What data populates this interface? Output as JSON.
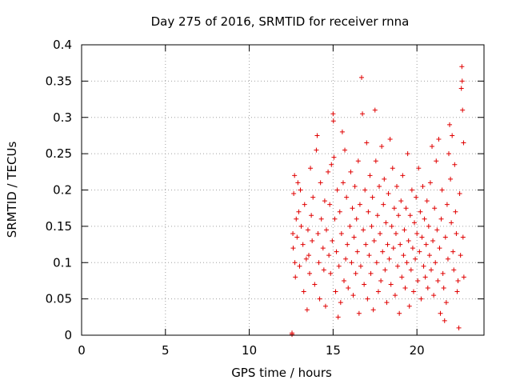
{
  "chart_data": {
    "type": "scatter",
    "title": "Day 275 of 2016, SRMTID for receiver rnna",
    "xlabel": "GPS time / hours",
    "ylabel": "SRMTID / TECUs",
    "xlim": [
      0,
      24
    ],
    "ylim": [
      0,
      0.4
    ],
    "xticks": [
      0,
      5,
      10,
      15,
      20
    ],
    "xtick_labels": [
      "0",
      "5",
      "10",
      "15",
      "20"
    ],
    "yticks": [
      0,
      0.05,
      0.1,
      0.15,
      0.2,
      0.25,
      0.3,
      0.35,
      0.4
    ],
    "ytick_labels": [
      "0",
      "0.05",
      "0.1",
      "0.15",
      "0.2",
      "0.25",
      "0.3",
      "0.35",
      "0.4"
    ],
    "grid": true,
    "marker": "+",
    "color": "#e00000",
    "x_range_of_data": [
      12.5,
      22.8
    ],
    "points": [
      [
        12.55,
        0.001
      ],
      [
        12.55,
        0.003
      ],
      [
        12.6,
        0.14
      ],
      [
        12.62,
        0.12
      ],
      [
        12.65,
        0.195
      ],
      [
        12.7,
        0.22
      ],
      [
        12.72,
        0.1
      ],
      [
        12.75,
        0.08
      ],
      [
        12.8,
        0.16
      ],
      [
        12.85,
        0.135
      ],
      [
        12.9,
        0.21
      ],
      [
        12.95,
        0.17
      ],
      [
        13.0,
        0.095
      ],
      [
        13.05,
        0.2
      ],
      [
        13.1,
        0.15
      ],
      [
        13.2,
        0.125
      ],
      [
        13.25,
        0.06
      ],
      [
        13.3,
        0.18
      ],
      [
        13.4,
        0.105
      ],
      [
        13.45,
        0.035
      ],
      [
        13.5,
        0.145
      ],
      [
        13.55,
        0.11
      ],
      [
        13.6,
        0.085
      ],
      [
        13.65,
        0.23
      ],
      [
        13.7,
        0.165
      ],
      [
        13.75,
        0.13
      ],
      [
        13.8,
        0.19
      ],
      [
        13.9,
        0.07
      ],
      [
        14.0,
        0.255
      ],
      [
        14.05,
        0.275
      ],
      [
        14.1,
        0.14
      ],
      [
        14.15,
        0.1
      ],
      [
        14.2,
        0.05
      ],
      [
        14.25,
        0.21
      ],
      [
        14.3,
        0.16
      ],
      [
        14.4,
        0.12
      ],
      [
        14.45,
        0.09
      ],
      [
        14.5,
        0.185
      ],
      [
        14.55,
        0.04
      ],
      [
        14.6,
        0.145
      ],
      [
        14.7,
        0.225
      ],
      [
        14.75,
        0.11
      ],
      [
        14.8,
        0.18
      ],
      [
        14.85,
        0.085
      ],
      [
        14.9,
        0.235
      ],
      [
        14.95,
        0.13
      ],
      [
        15.0,
        0.305
      ],
      [
        15.02,
        0.295
      ],
      [
        15.05,
        0.245
      ],
      [
        15.1,
        0.16
      ],
      [
        15.15,
        0.06
      ],
      [
        15.2,
        0.115
      ],
      [
        15.25,
        0.2
      ],
      [
        15.3,
        0.025
      ],
      [
        15.35,
        0.095
      ],
      [
        15.4,
        0.17
      ],
      [
        15.45,
        0.045
      ],
      [
        15.5,
        0.14
      ],
      [
        15.55,
        0.28
      ],
      [
        15.6,
        0.21
      ],
      [
        15.65,
        0.075
      ],
      [
        15.7,
        0.255
      ],
      [
        15.75,
        0.105
      ],
      [
        15.8,
        0.19
      ],
      [
        15.85,
        0.125
      ],
      [
        15.9,
        0.065
      ],
      [
        16.0,
        0.15
      ],
      [
        16.05,
        0.225
      ],
      [
        16.1,
        0.1
      ],
      [
        16.15,
        0.175
      ],
      [
        16.2,
        0.055
      ],
      [
        16.25,
        0.135
      ],
      [
        16.3,
        0.205
      ],
      [
        16.35,
        0.085
      ],
      [
        16.4,
        0.16
      ],
      [
        16.45,
        0.115
      ],
      [
        16.5,
        0.24
      ],
      [
        16.55,
        0.03
      ],
      [
        16.6,
        0.18
      ],
      [
        16.65,
        0.095
      ],
      [
        16.7,
        0.355
      ],
      [
        16.75,
        0.305
      ],
      [
        16.8,
        0.145
      ],
      [
        16.85,
        0.07
      ],
      [
        16.9,
        0.2
      ],
      [
        16.95,
        0.125
      ],
      [
        17.0,
        0.265
      ],
      [
        17.05,
        0.05
      ],
      [
        17.1,
        0.17
      ],
      [
        17.15,
        0.11
      ],
      [
        17.2,
        0.22
      ],
      [
        17.25,
        0.085
      ],
      [
        17.3,
        0.15
      ],
      [
        17.35,
        0.19
      ],
      [
        17.4,
        0.035
      ],
      [
        17.45,
        0.13
      ],
      [
        17.5,
        0.31
      ],
      [
        17.55,
        0.24
      ],
      [
        17.6,
        0.1
      ],
      [
        17.65,
        0.165
      ],
      [
        17.7,
        0.06
      ],
      [
        17.75,
        0.205
      ],
      [
        17.8,
        0.14
      ],
      [
        17.85,
        0.075
      ],
      [
        17.9,
        0.26
      ],
      [
        17.95,
        0.115
      ],
      [
        18.0,
        0.18
      ],
      [
        18.05,
        0.215
      ],
      [
        18.1,
        0.09
      ],
      [
        18.15,
        0.155
      ],
      [
        18.2,
        0.045
      ],
      [
        18.25,
        0.125
      ],
      [
        18.3,
        0.195
      ],
      [
        18.35,
        0.105
      ],
      [
        18.4,
        0.27
      ],
      [
        18.45,
        0.07
      ],
      [
        18.5,
        0.15
      ],
      [
        18.55,
        0.23
      ],
      [
        18.6,
        0.12
      ],
      [
        18.65,
        0.175
      ],
      [
        18.7,
        0.055
      ],
      [
        18.75,
        0.14
      ],
      [
        18.8,
        0.205
      ],
      [
        18.85,
        0.095
      ],
      [
        18.9,
        0.165
      ],
      [
        18.95,
        0.03
      ],
      [
        19.0,
        0.125
      ],
      [
        19.05,
        0.185
      ],
      [
        19.1,
        0.08
      ],
      [
        19.15,
        0.22
      ],
      [
        19.2,
        0.11
      ],
      [
        19.25,
        0.145
      ],
      [
        19.3,
        0.065
      ],
      [
        19.35,
        0.175
      ],
      [
        19.4,
        0.1
      ],
      [
        19.45,
        0.25
      ],
      [
        19.5,
        0.13
      ],
      [
        19.55,
        0.04
      ],
      [
        19.6,
        0.165
      ],
      [
        19.65,
        0.09
      ],
      [
        19.7,
        0.2
      ],
      [
        19.75,
        0.12
      ],
      [
        19.8,
        0.06
      ],
      [
        19.85,
        0.155
      ],
      [
        19.9,
        0.105
      ],
      [
        19.95,
        0.19
      ],
      [
        20.0,
        0.14
      ],
      [
        20.05,
        0.075
      ],
      [
        20.1,
        0.23
      ],
      [
        20.15,
        0.115
      ],
      [
        20.2,
        0.17
      ],
      [
        20.25,
        0.05
      ],
      [
        20.3,
        0.135
      ],
      [
        20.35,
        0.205
      ],
      [
        20.4,
        0.095
      ],
      [
        20.45,
        0.16
      ],
      [
        20.5,
        0.08
      ],
      [
        20.55,
        0.125
      ],
      [
        20.6,
        0.185
      ],
      [
        20.65,
        0.065
      ],
      [
        20.7,
        0.15
      ],
      [
        20.75,
        0.11
      ],
      [
        20.8,
        0.21
      ],
      [
        20.85,
        0.09
      ],
      [
        20.9,
        0.26
      ],
      [
        20.95,
        0.13
      ],
      [
        21.0,
        0.055
      ],
      [
        21.05,
        0.175
      ],
      [
        21.1,
        0.1
      ],
      [
        21.15,
        0.24
      ],
      [
        21.2,
        0.145
      ],
      [
        21.25,
        0.075
      ],
      [
        21.3,
        0.27
      ],
      [
        21.35,
        0.12
      ],
      [
        21.4,
        0.03
      ],
      [
        21.45,
        0.16
      ],
      [
        21.5,
        0.2
      ],
      [
        21.55,
        0.085
      ],
      [
        21.6,
        0.065
      ],
      [
        21.65,
        0.02
      ],
      [
        21.7,
        0.135
      ],
      [
        21.75,
        0.045
      ],
      [
        21.8,
        0.18
      ],
      [
        21.85,
        0.105
      ],
      [
        21.9,
        0.25
      ],
      [
        21.95,
        0.29
      ],
      [
        22.0,
        0.215
      ],
      [
        22.05,
        0.155
      ],
      [
        22.1,
        0.275
      ],
      [
        22.15,
        0.115
      ],
      [
        22.2,
        0.09
      ],
      [
        22.25,
        0.235
      ],
      [
        22.3,
        0.17
      ],
      [
        22.35,
        0.14
      ],
      [
        22.4,
        0.06
      ],
      [
        22.45,
        0.075
      ],
      [
        22.5,
        0.01
      ],
      [
        22.55,
        0.195
      ],
      [
        22.6,
        0.11
      ],
      [
        22.65,
        0.34
      ],
      [
        22.68,
        0.37
      ],
      [
        22.7,
        0.35
      ],
      [
        22.72,
        0.31
      ],
      [
        22.75,
        0.135
      ],
      [
        22.8,
        0.08
      ],
      [
        22.78,
        0.265
      ]
    ]
  }
}
